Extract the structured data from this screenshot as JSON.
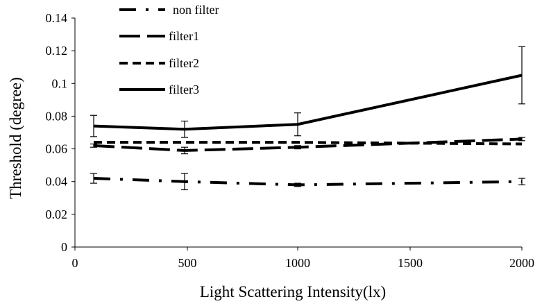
{
  "chart_data": {
    "type": "line",
    "title": "",
    "xlabel": "Light Scattering Intensity(lx)",
    "ylabel": "Threshold (degree)",
    "x": [
      100,
      500,
      1000,
      2000
    ],
    "x_categories": [
      "100",
      "500",
      "1000",
      "2000"
    ],
    "x_tick_labels": [
      "0",
      "500",
      "1000",
      "1500",
      "2000"
    ],
    "y_tick_labels": [
      "0",
      "0.02",
      "0.04",
      "0.06",
      "0.08",
      "0.1",
      "0.12",
      "0.14"
    ],
    "ylim": [
      0,
      0.14
    ],
    "grid": false,
    "legend_position": "top-left",
    "series": [
      {
        "name": "non filter",
        "dash": "dash-dot",
        "values": [
          0.042,
          0.04,
          0.038,
          0.04
        ],
        "errors": [
          0.003,
          0.005,
          0.001,
          0.002
        ]
      },
      {
        "name": "filter1",
        "dash": "long-dash",
        "values": [
          0.062,
          0.059,
          0.061,
          0.066
        ],
        "errors": [
          0.001,
          0.002,
          0.001,
          0.001
        ]
      },
      {
        "name": "filter2",
        "dash": "short-dash",
        "values": [
          0.064,
          0.064,
          0.064,
          0.063
        ],
        "errors": [
          0.0,
          0.0,
          0.0,
          0.0
        ]
      },
      {
        "name": "filter3",
        "dash": "solid",
        "values": [
          0.074,
          0.072,
          0.075,
          0.105
        ],
        "errors": [
          0.0065,
          0.005,
          0.007,
          0.0175
        ]
      }
    ],
    "color": "#000000"
  }
}
